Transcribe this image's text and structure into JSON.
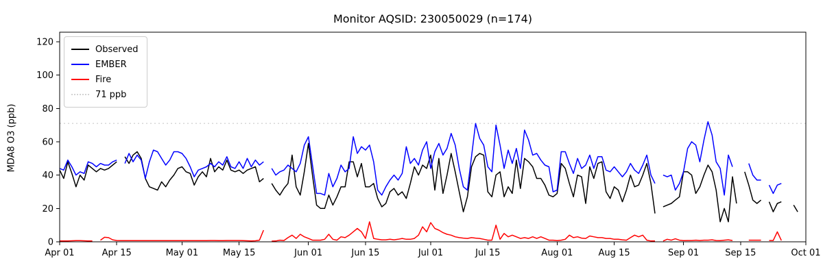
{
  "title": "Monitor AQSID: 230050029 (n=174)",
  "legend": {
    "items": [
      {
        "label": "Observed",
        "color": "#000000",
        "style": "solid"
      },
      {
        "label": "EMBER",
        "color": "#0000ff",
        "style": "solid"
      },
      {
        "label": "Fire",
        "color": "#ff0000",
        "style": "solid"
      },
      {
        "label": "71 ppb",
        "color": "#d3d3d3",
        "style": "dotted"
      }
    ]
  },
  "chart_data": {
    "type": "line",
    "title": "Monitor AQSID: 230050029 (n=174)",
    "xlabel": "",
    "ylabel": "MDA8 O3 (ppb)",
    "ylim": [
      0,
      125.7
    ],
    "y_ticks": [
      0,
      20,
      40,
      60,
      80,
      100,
      120
    ],
    "grid": false,
    "legend_position": "upper left",
    "x_days_total": 183,
    "x_ticks": [
      {
        "label": "Apr 01",
        "day": 0
      },
      {
        "label": "Apr 15",
        "day": 14
      },
      {
        "label": "May 01",
        "day": 30
      },
      {
        "label": "May 15",
        "day": 44
      },
      {
        "label": "Jun 01",
        "day": 61
      },
      {
        "label": "Jun 15",
        "day": 75
      },
      {
        "label": "Jul 01",
        "day": 91
      },
      {
        "label": "Jul 15",
        "day": 105
      },
      {
        "label": "Aug 01",
        "day": 122
      },
      {
        "label": "Aug 15",
        "day": 136
      },
      {
        "label": "Sep 01",
        "day": 153
      },
      {
        "label": "Sep 15",
        "day": 167
      },
      {
        "label": "Oct 01",
        "day": 183
      }
    ],
    "threshold": {
      "label": "71 ppb",
      "value": 71,
      "color": "#d3d3d3",
      "style": "dotted"
    },
    "series": [
      {
        "name": "Observed",
        "color": "#000000",
        "values": [
          43,
          38,
          48,
          41,
          33,
          40,
          37,
          46,
          44,
          42,
          44,
          43,
          44,
          46,
          48,
          null,
          51,
          47,
          52,
          54,
          50,
          38,
          33,
          32,
          31,
          36,
          33,
          37,
          40,
          44,
          45,
          42,
          41,
          34,
          39,
          42,
          39,
          50,
          42,
          45,
          43,
          49,
          43,
          42,
          43,
          41,
          43,
          44,
          45,
          36,
          38,
          null,
          35,
          31,
          28,
          32,
          35,
          52,
          33,
          28,
          42,
          59,
          40,
          22,
          20,
          20,
          28,
          22,
          27,
          33,
          33,
          48,
          48,
          39,
          47,
          33,
          33,
          35,
          26,
          21,
          23,
          30,
          32,
          28,
          30,
          26,
          35,
          45,
          40,
          46,
          44,
          52,
          31,
          50,
          29,
          40,
          53,
          42,
          30,
          18,
          27,
          45,
          51,
          53,
          52,
          30,
          27,
          40,
          42,
          27,
          33,
          29,
          49,
          32,
          50,
          48,
          45,
          38,
          38,
          34,
          28,
          27,
          29,
          47,
          44,
          35,
          27,
          40,
          39,
          23,
          45,
          38,
          47,
          48,
          30,
          26,
          33,
          31,
          24,
          31,
          40,
          33,
          34,
          40,
          47,
          35,
          17,
          null,
          21,
          22,
          23,
          25,
          27,
          42,
          42,
          40,
          29,
          33,
          40,
          46,
          42,
          31,
          12,
          20,
          12,
          39,
          23,
          null,
          42,
          34,
          25,
          23,
          25,
          null,
          24,
          18,
          23,
          24,
          null,
          null,
          22,
          18,
          null
        ]
      },
      {
        "name": "EMBER",
        "color": "#0000ff",
        "values": [
          44,
          43,
          49,
          45,
          40,
          42,
          41,
          48,
          47,
          45,
          47,
          46,
          46,
          48,
          49,
          null,
          47,
          53,
          48,
          52,
          49,
          38,
          48,
          55,
          54,
          50,
          46,
          49,
          54,
          54,
          53,
          50,
          45,
          39,
          43,
          44,
          45,
          47,
          45,
          48,
          46,
          51,
          45,
          44,
          48,
          44,
          50,
          45,
          49,
          46,
          48,
          null,
          44,
          40,
          42,
          43,
          46,
          44,
          42,
          47,
          58,
          63,
          46,
          29,
          29,
          28,
          41,
          33,
          38,
          46,
          42,
          44,
          63,
          53,
          57,
          55,
          58,
          48,
          31,
          28,
          33,
          37,
          40,
          37,
          41,
          57,
          47,
          50,
          46,
          55,
          60,
          44,
          54,
          59,
          52,
          56,
          65,
          58,
          44,
          33,
          31,
          51,
          71,
          62,
          58,
          45,
          42,
          70,
          58,
          44,
          55,
          47,
          56,
          44,
          67,
          61,
          52,
          53,
          49,
          46,
          45,
          30,
          31,
          54,
          54,
          47,
          41,
          50,
          44,
          46,
          52,
          44,
          51,
          51,
          43,
          42,
          45,
          42,
          39,
          42,
          47,
          43,
          41,
          46,
          52,
          40,
          35,
          null,
          40,
          39,
          40,
          31,
          35,
          42,
          56,
          60,
          58,
          48,
          61,
          72,
          64,
          48,
          44,
          28,
          52,
          45,
          null,
          null,
          null,
          47,
          40,
          37,
          37,
          null,
          34,
          29,
          34,
          35,
          null,
          null,
          null,
          null,
          null
        ]
      },
      {
        "name": "Fire",
        "color": "#ff0000",
        "values": [
          0.5,
          0.5,
          0.5,
          0.6,
          0.7,
          0.7,
          0.6,
          0.5,
          0.5,
          null,
          1,
          2.7,
          2.5,
          1.2,
          0.8,
          0.7,
          0.7,
          0.7,
          0.7,
          0.7,
          0.7,
          0.7,
          0.7,
          0.7,
          0.7,
          0.7,
          0.7,
          0.7,
          0.7,
          0.7,
          0.7,
          0.7,
          0.7,
          0.7,
          0.7,
          0.7,
          0.7,
          0.8,
          0.8,
          0.7,
          0.7,
          0.8,
          0.8,
          0.8,
          0.8,
          0.7,
          0.6,
          0.5,
          0.6,
          1,
          7,
          null,
          0.4,
          0.5,
          1,
          0.8,
          2.5,
          4,
          2,
          4.5,
          3,
          2,
          1,
          1,
          1,
          1.5,
          4.5,
          1.5,
          1,
          3,
          2.5,
          4,
          6,
          8,
          6,
          2,
          12,
          2,
          1.5,
          1.2,
          1.2,
          1.5,
          1.2,
          1.5,
          2,
          1.5,
          1.5,
          2,
          4,
          9,
          6,
          11.5,
          8,
          7,
          5.5,
          4.5,
          4,
          3,
          2.5,
          2.2,
          2,
          2.5,
          2.2,
          2,
          1.5,
          1,
          1,
          10,
          1.5,
          5,
          3,
          4,
          3,
          2,
          2.5,
          2,
          3,
          2,
          3,
          2,
          1,
          1,
          0.7,
          1,
          1.5,
          4,
          2.5,
          3,
          2.2,
          2,
          3.5,
          3,
          2.5,
          2.5,
          2,
          2,
          1.5,
          1.5,
          1.2,
          1,
          2.5,
          4,
          3,
          4,
          1,
          0.5,
          0.5,
          null,
          0.5,
          1.5,
          1,
          1.8,
          1,
          0.7,
          0.8,
          0.8,
          1,
          0.8,
          1,
          1,
          1.2,
          0.8,
          0.7,
          1,
          1.2,
          0.8,
          null,
          null,
          null,
          1,
          1,
          1,
          1,
          null,
          0.8,
          0.8,
          6,
          0.8,
          null,
          null,
          null,
          null,
          null
        ]
      }
    ]
  }
}
